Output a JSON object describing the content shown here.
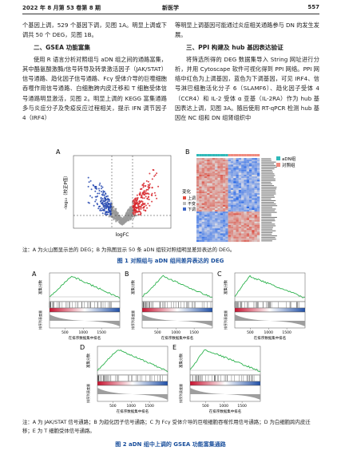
{
  "header": {
    "issue": "2022 年 8 月第 53 卷第 8 期",
    "journal": "新医学",
    "page": "557"
  },
  "left_column": {
    "paragraph_1": "个基因上调，529 个基因下调，见图 1A。明显上调或下调共 50 个 DEG，见图 1B。",
    "heading": "二、GSEA 功能富集",
    "paragraph_2": "使用 R 语言分析对照组与 aDN 组之间的通路富集，其中酪氨酸激酶/信号转导及转录激活因子（JAK/STAT）信号通路、趋化因子信号通路、Fcγ 受体介导的巨噬细胞吞噬作用信号通路、白细胞跨内皮迁移和 T 细胞受体信号通路明显激活，见图 2。明显上调的 KEGG 富集通路多与炎症分子及免疫反应过程相关，提示 IFN 调节因子 4（IRF4）"
  },
  "right_column": {
    "paragraph_1": "等明显上调基因可能通过炎症相关通路参与 DN 的发生发展。",
    "heading": "三、PPI 构建及 hub 基因表达验证",
    "paragraph_2": "将筛选所得的 DEG 数据集导入 String 网址进行分析，并用 Cytoscape 软件可视化得到 PPI 网络。PPI 网络中红色为上调基因，蓝色为下调基因，可见 IRF4、信号淋巴细胞活化分子 6（SLAMF6）、趋化因子受体 4（CCR4）和 IL-2 受体 α 亚基（IL-2RA）作为 hub 基因表达上调，见图 3A。随后使用 RT-qPCR 检测 hub 基因在 NC 组和 DN 组肾组织中"
  },
  "figure_1": {
    "panel_a": {
      "label": "A",
      "y_axis_label": "-log₁₀（校正P值）",
      "x_axis_label": "logFC"
    },
    "panel_b": {
      "label": "B",
      "legend": [
        "aDN组",
        "对照组"
      ],
      "change_label": "变化",
      "change_levels": [
        "上调",
        "不变",
        "下调"
      ]
    },
    "note": "注：A 为火山图显示总的 DEG；B 为热图显示 50 条 aDN 组较对照组明显差异表达的 DEG。",
    "caption": "图 1  对照组与 aDN 组间差异表达的 DEG"
  },
  "figure_2": {
    "panels": [
      {
        "label": "A",
        "y_axis_top": "富集分数",
        "y_axis_bottom": "排序列表度量",
        "x_axis_label": "在排序数据集中排名",
        "x_ticks": [
          "500",
          "1000",
          "1500"
        ]
      },
      {
        "label": "B",
        "y_axis_top": "富集分数",
        "y_axis_bottom": "排序列表度量",
        "x_axis_label": "在排序数据集中排名",
        "x_ticks": [
          "500",
          "1000",
          "1500"
        ]
      },
      {
        "label": "C",
        "y_axis_top": "富集分数",
        "y_axis_bottom": "排序列表度量",
        "x_axis_label": "在排序数据集中排名",
        "x_ticks": [
          "500",
          "1000",
          "1500"
        ]
      },
      {
        "label": "D",
        "y_axis_top": "富集分数",
        "y_axis_bottom": "排序列表度量",
        "x_axis_label": "在排序数据集中排名",
        "x_ticks": [
          "500",
          "1000",
          "1500"
        ]
      },
      {
        "label": "E",
        "y_axis_top": "富集分数",
        "y_axis_bottom": "排序列表度量",
        "x_axis_label": "在排序数据集中排名",
        "x_ticks": [
          "500",
          "1000",
          "1500"
        ]
      }
    ],
    "note": "注：A 为 JAK/STAT 信号通路；B 为趋化因子信号通路；C 为 Fcγ 受体介导的巨噬细胞吞噬作用信号通路；D 为白细胞跨内皮迁移；E 为 T 细胞受体信号通路。",
    "caption": "图 2  aDN 组中上调的 GSEA 功能富集通路"
  }
}
